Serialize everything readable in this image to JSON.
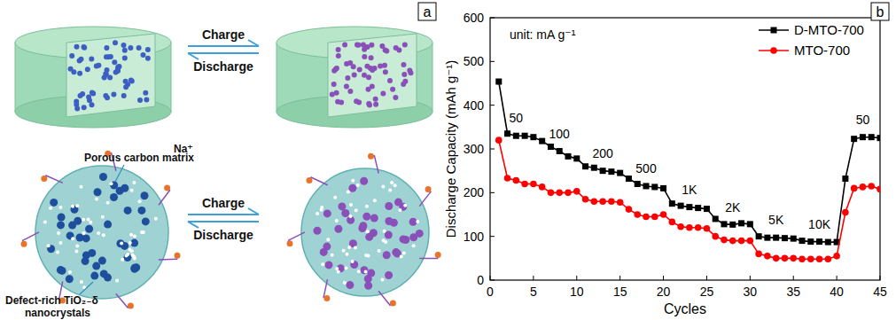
{
  "diagram": {
    "label": "a",
    "top": {
      "charge": "Charge",
      "discharge": "Discharge"
    },
    "bottom": {
      "charge": "Charge",
      "discharge": "Discharge",
      "matrix": "Porous carbon matrix",
      "ion": "Na⁺",
      "crystals": [
        "Defect-rich TiO₂₋δ",
        "nanocrystals"
      ]
    }
  },
  "chart_data": {
    "label": "b",
    "type": "line",
    "note": "unit: mA g⁻¹",
    "x_label": "Cycles",
    "y_label": "Discharge Capacity (mAh g⁻¹)",
    "x": [
      1,
      2,
      3,
      4,
      5,
      6,
      7,
      8,
      9,
      10,
      11,
      12,
      13,
      14,
      15,
      16,
      17,
      18,
      19,
      20,
      21,
      22,
      23,
      24,
      25,
      26,
      27,
      28,
      29,
      30,
      31,
      32,
      33,
      34,
      35,
      36,
      37,
      38,
      39,
      40,
      41,
      42,
      43,
      44,
      45
    ],
    "xlim": [
      0,
      45
    ],
    "xticks": [
      0,
      5,
      10,
      15,
      20,
      25,
      30,
      35,
      40,
      45
    ],
    "ylim": [
      0,
      600
    ],
    "yticks": [
      0,
      100,
      200,
      300,
      400,
      500,
      600
    ],
    "legend": "upper right",
    "series": [
      {
        "name": "D-MTO-700",
        "color": "#000000",
        "marker": "square",
        "values": [
          454,
          335,
          330,
          330,
          327,
          318,
          305,
          295,
          283,
          278,
          260,
          257,
          250,
          248,
          245,
          232,
          220,
          215,
          213,
          210,
          175,
          170,
          167,
          165,
          163,
          140,
          128,
          127,
          130,
          128,
          100,
          97,
          97,
          96,
          95,
          90,
          88,
          88,
          87,
          87,
          232,
          323,
          327,
          327,
          325
        ]
      },
      {
        "name": "MTO-700",
        "color": "#ff0000",
        "marker": "circle",
        "values": [
          320,
          233,
          228,
          220,
          220,
          213,
          200,
          200,
          200,
          203,
          185,
          180,
          180,
          180,
          178,
          162,
          150,
          145,
          145,
          150,
          133,
          122,
          120,
          120,
          118,
          100,
          92,
          90,
          90,
          90,
          60,
          55,
          50,
          50,
          50,
          48,
          48,
          48,
          48,
          55,
          155,
          210,
          213,
          215,
          208
        ]
      }
    ],
    "annotations": [
      "50",
      "100",
      "200",
      "500",
      "1K",
      "2K",
      "5K",
      "10K",
      "50"
    ]
  }
}
